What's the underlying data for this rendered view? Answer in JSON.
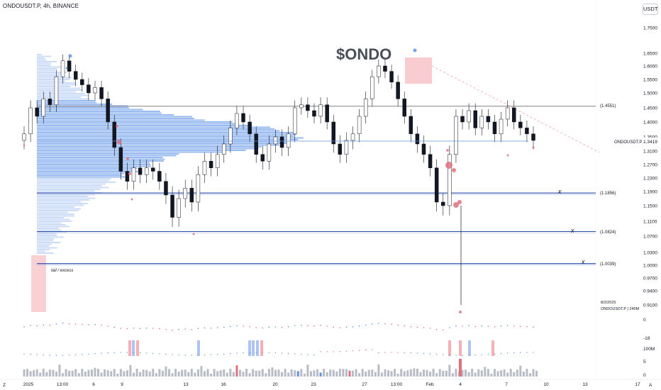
{
  "header": {
    "symbol_line": "ONDOUSDT.P, 4h, BINANCE",
    "currency": "USDT",
    "annotation_title": "$ONDO"
  },
  "chart_data": {
    "type": "candlestick",
    "symbol": "ONDOUSDT.P",
    "interval": "4h",
    "exchange": "BINANCE",
    "y_ticks": [
      1.75,
      1.65,
      1.6,
      1.55,
      1.5,
      1.45,
      1.4,
      1.35,
      1.31,
      1.27,
      1.23,
      1.19,
      1.15,
      1.11,
      1.07,
      1.03,
      1.0,
      0.97,
      0.94,
      0.91
    ],
    "y_tick_labels": [
      "1.7500",
      "1.6500",
      "1.6000",
      "1.5500",
      "1.5000",
      "1.4500",
      "1.4000",
      "1.3500",
      "1.3100",
      "1.2700",
      "1.2300",
      "1.1900",
      "1.1500",
      "1.1100",
      "1.0700",
      "1.0300",
      "1.0000",
      "0.9700",
      "0.9400",
      "0.9100"
    ],
    "x_ticks": [
      "2025",
      "13:00",
      "6",
      "9",
      "13",
      "16",
      "20",
      "23",
      "27",
      "13:00",
      "Feb",
      "4",
      "7",
      "10",
      "13",
      "17"
    ],
    "current_price": {
      "label": "ONDOUSDT.P",
      "value": "1.3419"
    },
    "levels": [
      {
        "value": 1.4551,
        "label": "(1.4551)"
      },
      {
        "value": 1.1856,
        "label": "(1.1856)"
      },
      {
        "value": 1.0824,
        "label": "(1.0824)"
      },
      {
        "value": 1.0039,
        "label": "(1.0039)"
      }
    ],
    "level_marks": [
      "x",
      "x",
      "x"
    ],
    "notes": {
      "tail": "tail / excess"
    },
    "date_stamp": "8/2/2025",
    "source_stamp": "ONDOUSDT.P | 240M",
    "indicator_labels": [
      "0",
      "-18",
      "100M",
      "5",
      "0"
    ],
    "corner_labels": [
      "Z",
      "A"
    ],
    "price_series": [
      {
        "o": 1.34,
        "c": 1.36
      },
      {
        "o": 1.36,
        "c": 1.45
      },
      {
        "o": 1.45,
        "c": 1.42
      },
      {
        "o": 1.42,
        "c": 1.48
      },
      {
        "o": 1.48,
        "c": 1.46
      },
      {
        "o": 1.46,
        "c": 1.56
      },
      {
        "o": 1.56,
        "c": 1.62
      },
      {
        "o": 1.62,
        "c": 1.58
      },
      {
        "o": 1.58,
        "c": 1.55
      },
      {
        "o": 1.55,
        "c": 1.53
      },
      {
        "o": 1.53,
        "c": 1.5
      },
      {
        "o": 1.5,
        "c": 1.52
      },
      {
        "o": 1.52,
        "c": 1.48
      },
      {
        "o": 1.48,
        "c": 1.4
      },
      {
        "o": 1.4,
        "c": 1.32
      },
      {
        "o": 1.32,
        "c": 1.25
      },
      {
        "o": 1.25,
        "c": 1.22
      },
      {
        "o": 1.22,
        "c": 1.26
      },
      {
        "o": 1.26,
        "c": 1.24
      },
      {
        "o": 1.24,
        "c": 1.26
      },
      {
        "o": 1.26,
        "c": 1.25
      },
      {
        "o": 1.25,
        "c": 1.22
      },
      {
        "o": 1.22,
        "c": 1.18
      },
      {
        "o": 1.18,
        "c": 1.12
      },
      {
        "o": 1.12,
        "c": 1.17
      },
      {
        "o": 1.17,
        "c": 1.2
      },
      {
        "o": 1.2,
        "c": 1.16
      },
      {
        "o": 1.16,
        "c": 1.24
      },
      {
        "o": 1.24,
        "c": 1.28
      },
      {
        "o": 1.28,
        "c": 1.26
      },
      {
        "o": 1.26,
        "c": 1.3
      },
      {
        "o": 1.3,
        "c": 1.33
      },
      {
        "o": 1.33,
        "c": 1.38
      },
      {
        "o": 1.38,
        "c": 1.43
      },
      {
        "o": 1.43,
        "c": 1.4
      },
      {
        "o": 1.4,
        "c": 1.36
      },
      {
        "o": 1.36,
        "c": 1.3
      },
      {
        "o": 1.3,
        "c": 1.28
      },
      {
        "o": 1.28,
        "c": 1.33
      },
      {
        "o": 1.33,
        "c": 1.35
      },
      {
        "o": 1.35,
        "c": 1.32
      },
      {
        "o": 1.32,
        "c": 1.36
      },
      {
        "o": 1.36,
        "c": 1.45
      },
      {
        "o": 1.45,
        "c": 1.46
      },
      {
        "o": 1.46,
        "c": 1.44
      },
      {
        "o": 1.44,
        "c": 1.42
      },
      {
        "o": 1.42,
        "c": 1.46
      },
      {
        "o": 1.46,
        "c": 1.4
      },
      {
        "o": 1.4,
        "c": 1.33
      },
      {
        "o": 1.33,
        "c": 1.3
      },
      {
        "o": 1.3,
        "c": 1.34
      },
      {
        "o": 1.34,
        "c": 1.36
      },
      {
        "o": 1.36,
        "c": 1.42
      },
      {
        "o": 1.42,
        "c": 1.48
      },
      {
        "o": 1.48,
        "c": 1.56
      },
      {
        "o": 1.56,
        "c": 1.6
      },
      {
        "o": 1.6,
        "c": 1.58
      },
      {
        "o": 1.58,
        "c": 1.54
      },
      {
        "o": 1.54,
        "c": 1.48
      },
      {
        "o": 1.48,
        "c": 1.42
      },
      {
        "o": 1.42,
        "c": 1.36
      },
      {
        "o": 1.36,
        "c": 1.33
      },
      {
        "o": 1.33,
        "c": 1.3
      },
      {
        "o": 1.3,
        "c": 1.26
      },
      {
        "o": 1.26,
        "c": 1.16
      },
      {
        "o": 1.16,
        "c": 1.15
      },
      {
        "o": 1.15,
        "c": 1.3
      },
      {
        "o": 1.3,
        "c": 1.42
      },
      {
        "o": 1.42,
        "c": 1.4
      },
      {
        "o": 1.4,
        "c": 1.44
      },
      {
        "o": 1.44,
        "c": 1.38
      },
      {
        "o": 1.38,
        "c": 1.42
      },
      {
        "o": 1.42,
        "c": 1.4
      },
      {
        "o": 1.4,
        "c": 1.36
      },
      {
        "o": 1.36,
        "c": 1.41
      },
      {
        "o": 1.41,
        "c": 1.45
      },
      {
        "o": 1.45,
        "c": 1.4
      },
      {
        "o": 1.4,
        "c": 1.38
      },
      {
        "o": 1.38,
        "c": 1.36
      },
      {
        "o": 1.36,
        "c": 1.34
      }
    ]
  }
}
